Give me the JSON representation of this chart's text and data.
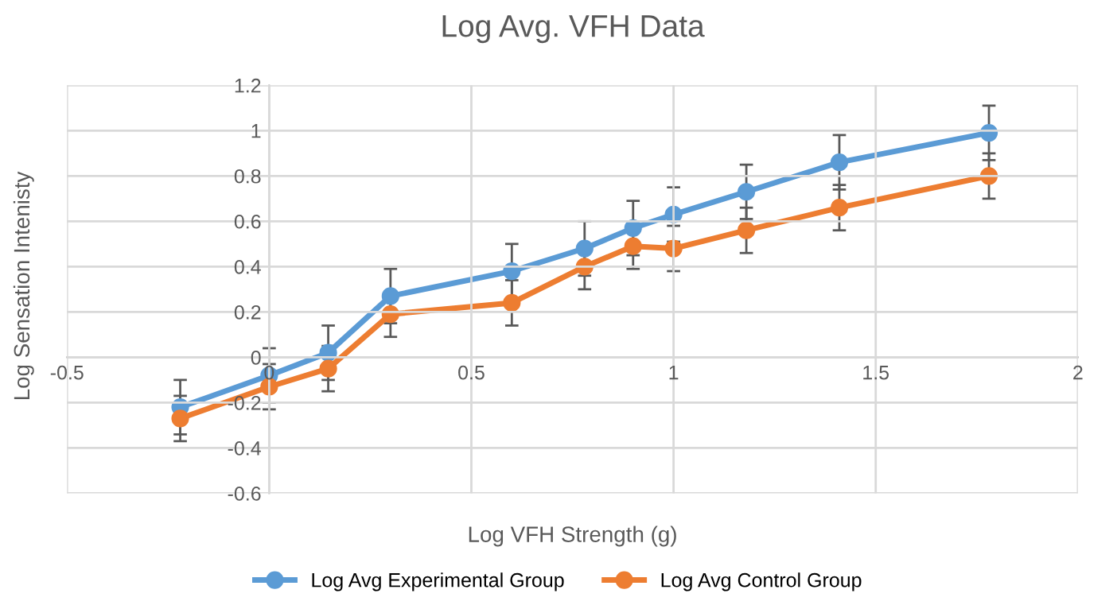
{
  "chart_data": {
    "type": "line",
    "title": "Log Avg. VFH Data",
    "xlabel": "Log VFH Strength (g)",
    "ylabel": "Log Sensation Intenisty",
    "x": [
      -0.22,
      0,
      0.146,
      0.3,
      0.6,
      0.78,
      0.9,
      1.0,
      1.18,
      1.41,
      1.78
    ],
    "series": [
      {
        "name": "Log Avg Experimental Group",
        "color": "#5b9bd5",
        "values": [
          -0.22,
          -0.08,
          0.02,
          0.27,
          0.38,
          0.48,
          0.57,
          0.63,
          0.73,
          0.86,
          0.99
        ],
        "errors": [
          0.12,
          0.12,
          0.12,
          0.12,
          0.12,
          0.12,
          0.12,
          0.12,
          0.12,
          0.12,
          0.12
        ]
      },
      {
        "name": "Log Avg Control Group",
        "color": "#ed7d31",
        "values": [
          -0.27,
          -0.13,
          -0.05,
          0.19,
          0.24,
          0.4,
          0.49,
          0.48,
          0.56,
          0.66,
          0.8
        ],
        "errors": [
          0.1,
          0.1,
          0.1,
          0.1,
          0.1,
          0.1,
          0.1,
          0.1,
          0.1,
          0.1,
          0.1
        ]
      }
    ],
    "xlim": [
      -0.5,
      2
    ],
    "xticks": [
      -0.5,
      0.5,
      1,
      1.5,
      2,
      {
        "value": 0,
        "label": "0"
      }
    ],
    "ylim": [
      -0.6,
      1.2
    ],
    "yticks": [
      -0.6,
      -0.4,
      -0.2,
      0,
      0.2,
      0.4,
      0.6,
      0.8,
      1,
      1.2
    ],
    "grid": true,
    "legend": "bottom",
    "marker": "circle",
    "line_style": "solid"
  }
}
